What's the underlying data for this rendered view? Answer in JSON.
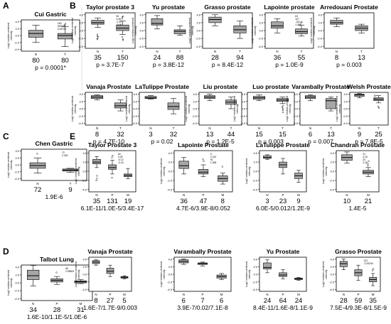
{
  "figure": {
    "panel_letters": [
      "A",
      "B",
      "C",
      "D",
      "E"
    ],
    "ylabel_main": "Log2 median-centered",
    "ylabel_sub": "intensity"
  },
  "panels": [
    {
      "letter": "A",
      "title": "Cui Gastric",
      "yticks": [
        "4.0",
        "2.0",
        "0.0",
        "-2.0",
        "-4.0"
      ],
      "ylim": [
        -4.5,
        4.5
      ],
      "groups": [
        {
          "label": "N",
          "count": "80",
          "box": {
            "min": -2.0,
            "q1": -0.5,
            "median": 0.6,
            "q3": 1.5,
            "max": 3.0
          }
        },
        {
          "label": "T",
          "count": "80",
          "box": {
            "min": -3.2,
            "q1": -1.0,
            "median": 0.0,
            "q3": 0.6,
            "max": 2.6
          },
          "outliers": [
            3.4,
            3.0,
            2.8
          ]
        }
      ],
      "annotations": [
        "160",
        "00072",
        "0,04701"
      ],
      "pvalue": "p = 0.0001*"
    },
    {
      "letter": "B",
      "title": "Taylor prostate 3",
      "yticks": [
        "4.0",
        "2.0",
        "0.0",
        "-2.0",
        "-4.0"
      ],
      "ylim": [
        -4.5,
        4.5
      ],
      "groups": [
        {
          "label": "N",
          "count": "35",
          "box": {
            "min": 0.8,
            "q1": 1.6,
            "median": 2.0,
            "q3": 2.6,
            "max": 3.2
          },
          "outliers": [
            -1.0,
            -1.4,
            -1.6,
            -2.0,
            -2.2
          ]
        },
        {
          "label": "T",
          "count": "150",
          "box": {
            "min": -1.0,
            "q1": 0.0,
            "median": 0.6,
            "q3": 1.4,
            "max": 2.4
          },
          "outliers": [
            3.0,
            3.4,
            3.6,
            -1.6,
            -2.2,
            -2.4
          ]
        }
      ],
      "annotations": [
        "30",
        "3.26",
        "-0.13",
        "-0.16"
      ],
      "pvalue": "p = 3.7E-7"
    },
    {
      "letter": "",
      "title": "Yu prostate",
      "yticks": [
        "4.0",
        "2.0",
        "0.0",
        "-2.0",
        "-4.0"
      ],
      "ylim": [
        -4.5,
        4.5
      ],
      "groups": [
        {
          "label": "N",
          "count": "24",
          "box": {
            "min": 0.4,
            "q1": 1.4,
            "median": 1.8,
            "q3": 3.0,
            "max": 3.8
          }
        },
        {
          "label": "T",
          "count": "88",
          "box": {
            "min": -1.2,
            "q1": -0.8,
            "median": -0.2,
            "q3": 0.2,
            "max": 1.2
          }
        }
      ],
      "pvalue": "p = 3.8E-12"
    },
    {
      "letter": "",
      "title": "Grasso prostate",
      "yticks": [
        "4.0",
        "2.0",
        "0.0",
        "-2.0",
        "-4.0"
      ],
      "ylim": [
        -4.5,
        4.5
      ],
      "groups": [
        {
          "label": "N",
          "count": "28",
          "box": {
            "min": 1.2,
            "q1": 2.0,
            "median": 2.8,
            "q3": 3.4,
            "max": 4.0
          }
        },
        {
          "label": "T",
          "count": "94",
          "box": {
            "min": -2.0,
            "q1": -0.6,
            "median": 0.2,
            "q3": 1.2,
            "max": 2.4
          }
        }
      ],
      "pvalue": "p = 8.4E-12"
    },
    {
      "letter": "",
      "title": "Lapointe prostate",
      "yticks": [
        "4.0",
        "2.0",
        "0.0",
        "-2.0",
        "-4.0"
      ],
      "ylim": [
        -4.5,
        4.5
      ],
      "groups": [
        {
          "label": "N",
          "count": "36",
          "box": {
            "min": -0.6,
            "q1": 0.6,
            "median": 1.2,
            "q3": 2.2,
            "max": 3.0
          }
        },
        {
          "label": "T",
          "count": "55",
          "box": {
            "min": -1.4,
            "q1": -0.8,
            "median": -0.3,
            "q3": 0.4,
            "max": 1.4
          },
          "outliers": [
            2.0,
            2.2
          ]
        }
      ],
      "annotations": [
        "63",
        "127",
        ".122",
        "1.336"
      ],
      "pvalue": "p = 1.0E-9"
    },
    {
      "letter": "",
      "title": "Arredouani Prostate",
      "yticks": [
        "4.0",
        "2.0",
        "0.0",
        "-2.0",
        "-4.0"
      ],
      "ylim": [
        -4.5,
        4.5
      ],
      "groups": [
        {
          "label": "N",
          "count": "8",
          "box": {
            "min": 1.0,
            "q1": 1.6,
            "median": 2.0,
            "q3": 2.6,
            "max": 3.2
          }
        },
        {
          "label": "T",
          "count": "13",
          "box": {
            "min": -0.6,
            "q1": 0.0,
            "median": 0.6,
            "q3": 1.2,
            "max": 1.6
          }
        }
      ],
      "pvalue": "p = 0.003"
    },
    {
      "letter": "",
      "title": "Vanaja Prostate",
      "yticks": [
        "4.0",
        "2.0",
        "0.0",
        "-2.0",
        "-4.0"
      ],
      "ylim": [
        -4.5,
        4.5
      ],
      "groups": [
        {
          "label": "N",
          "count": "8",
          "box": {
            "min": 2.4,
            "q1": 2.8,
            "median": 3.2,
            "q3": 3.6,
            "max": 3.8
          }
        },
        {
          "label": "T",
          "count": "32",
          "box": {
            "min": -0.6,
            "q1": 0.2,
            "median": 0.8,
            "q3": 1.6,
            "max": 2.4
          }
        }
      ],
      "pvalue": "p = 4.7E-10"
    },
    {
      "letter": "",
      "title": "LaTulippe Prostate",
      "yticks": [
        "4.0",
        "2.0",
        "0.0",
        "-2.0",
        "-4.0"
      ],
      "ylim": [
        -4.5,
        4.5
      ],
      "groups": [
        {
          "label": "N",
          "count": "3",
          "box": {
            "min": 2.6,
            "q1": 2.8,
            "median": 3.0,
            "q3": 3.4,
            "max": 3.6
          }
        },
        {
          "label": "T",
          "count": "32",
          "box": {
            "min": -1.4,
            "q1": -0.2,
            "median": 0.6,
            "q3": 1.6,
            "max": 2.8
          }
        }
      ],
      "pvalue": "p = 0.02"
    },
    {
      "letter": "",
      "title": "Liu prostate",
      "yticks": [
        "4.0",
        "2.0",
        "0.0",
        "-2.0",
        "-4.0"
      ],
      "ylim": [
        -4.5,
        4.5
      ],
      "groups": [
        {
          "label": "N",
          "count": "13",
          "box": {
            "min": 2.2,
            "q1": 2.8,
            "median": 3.2,
            "q3": 3.6,
            "max": 4.0
          }
        },
        {
          "label": "T",
          "count": "44",
          "box": {
            "min": 0.0,
            "q1": 1.2,
            "median": 1.8,
            "q3": 2.4,
            "max": 3.2
          }
        }
      ],
      "pvalue": "p = 1.2E-5"
    },
    {
      "letter": "",
      "title": "Luo prostate",
      "yticks": [
        "4.0",
        "2.0",
        "0.0",
        "-2.0",
        "-4.0"
      ],
      "ylim": [
        -4.5,
        4.5
      ],
      "groups": [
        {
          "label": "N",
          "count": "15",
          "box": {
            "min": 2.2,
            "q1": 2.6,
            "median": 3.0,
            "q3": 3.4,
            "max": 3.8
          }
        },
        {
          "label": "T",
          "count": "15",
          "box": {
            "min": 1.4,
            "q1": 2.0,
            "median": 2.4,
            "q3": 2.8,
            "max": 3.2
          },
          "outliers": [
            0.8,
            0.4,
            0.0,
            -0.4,
            -1.0
          ]
        }
      ],
      "pvalue": "p = 0.003"
    },
    {
      "letter": "",
      "title": "Varambally Prostate",
      "yticks": [
        "4.0",
        "2.0",
        "0.0",
        "-2.0",
        "-4.0"
      ],
      "ylim": [
        -4.5,
        4.5
      ],
      "groups": [
        {
          "label": "N",
          "count": "6",
          "box": {
            "min": 2.2,
            "q1": 2.8,
            "median": 3.2,
            "q3": 3.6,
            "max": 3.8
          }
        },
        {
          "label": "T",
          "count": "13",
          "box": {
            "min": -0.6,
            "q1": 0.0,
            "median": 2.2,
            "q3": 2.8,
            "max": 3.2
          }
        }
      ],
      "pvalue": "p = 0.007"
    },
    {
      "letter": "",
      "title": "Welsh Prostate",
      "yticks": [
        "4.0",
        "2.0",
        "0.0",
        "-2.0",
        "-4.0"
      ],
      "ylim": [
        -4.5,
        4.5
      ],
      "groups": [
        {
          "label": "N",
          "count": "9",
          "box": {
            "min": 3.0,
            "q1": 3.4,
            "median": 3.8,
            "q3": 4.0,
            "max": 4.2
          }
        },
        {
          "label": "T",
          "count": "25",
          "box": {
            "min": 1.6,
            "q1": 2.2,
            "median": 2.6,
            "q3": 3.0,
            "max": 3.6
          },
          "outliers": [
            0.6,
            0.2
          ]
        }
      ],
      "annotations": [
        "25",
        "10"
      ],
      "pvalue": "p = 7.8E-5"
    },
    {
      "letter": "C",
      "title": "Chen Gastric",
      "yticks": [
        "4.0",
        "2.0",
        "0.0",
        "-2.0",
        "-4.0"
      ],
      "ylim": [
        -4.5,
        4.5
      ],
      "groups": [
        {
          "label": "N",
          "count": "72",
          "box": {
            "min": -2.4,
            "q1": -1.0,
            "median": -0.2,
            "q3": 0.6,
            "max": 2.0
          },
          "outliers": [
            3.2
          ]
        },
        {
          "label": "T",
          "count": "9",
          "box": {
            "min": -2.2,
            "q1": -1.8,
            "median": -1.5,
            "q3": -1.2,
            "max": -1.0
          }
        }
      ],
      "annotations": [
        "72",
        "2.352"
      ],
      "pvalue": "1.9E-6"
    },
    {
      "letter": "D",
      "title": "Talbot Lung",
      "yticks": [
        "4.0",
        "2.0",
        "0.0",
        "-2.0",
        "-4.0"
      ],
      "ylim": [
        -4.5,
        4.5
      ],
      "groups": [
        {
          "label": "N",
          "count": "34",
          "box": {
            "min": -0.8,
            "q1": 0.8,
            "median": 1.8,
            "q3": 3.2,
            "max": 4.4
          }
        },
        {
          "label": "P",
          "count": "28",
          "box": {
            "min": -0.4,
            "q1": 0.2,
            "median": 0.6,
            "q3": 1.0,
            "max": 1.6
          },
          "outliers": [
            2.6
          ]
        },
        {
          "label": "M",
          "count": "31",
          "box": {
            "min": -0.2,
            "q1": 0.0,
            "median": 0.3,
            "q3": 0.5,
            "max": 0.8
          }
        }
      ],
      "annotations": [
        "46",
        "2.95604"
      ],
      "pvalue": "1.6E-10/1.1E-5/1.0E-6"
    },
    {
      "letter": "E",
      "title": "Taylor Prostate 3",
      "yticks": [
        "4.0",
        "2.0",
        "0.0",
        "-2.0",
        "-4.0"
      ],
      "ylim": [
        -4.5,
        4.5
      ],
      "groups": [
        {
          "label": "N",
          "count": "35",
          "box": {
            "min": 0.8,
            "q1": 1.6,
            "median": 2.0,
            "q3": 2.6,
            "max": 3.2
          },
          "outliers": [
            -1.0,
            -1.6,
            -2.0
          ]
        },
        {
          "label": "P",
          "count": "131",
          "box": {
            "min": -0.6,
            "q1": 0.4,
            "median": 0.8,
            "q3": 1.4,
            "max": 2.4
          },
          "outliers": [
            3.0,
            3.4,
            -1.4
          ]
        },
        {
          "label": "M",
          "count": "19",
          "box": {
            "min": -1.6,
            "q1": -1.2,
            "median": -0.9,
            "q3": -0.6,
            "max": 0.6
          }
        }
      ],
      "annotations": [
        "50",
        "3.25",
        "-0.12",
        "-0.16"
      ],
      "pvalue": "6.1E-11/1.0E-5/3.4E-17"
    },
    {
      "letter": "",
      "title": "Lapointe Prostate",
      "yticks": [
        "4.0",
        "2.0",
        "0.0",
        "-2.0",
        "-4.0"
      ],
      "ylim": [
        -4.5,
        4.5
      ],
      "groups": [
        {
          "label": "N",
          "count": "36",
          "box": {
            "min": -0.6,
            "q1": 0.6,
            "median": 1.2,
            "q3": 2.2,
            "max": 3.0
          }
        },
        {
          "label": "P",
          "count": "47",
          "box": {
            "min": -1.2,
            "q1": -0.6,
            "median": -0.2,
            "q3": 0.4,
            "max": 1.4
          },
          "outliers": [
            2.2,
            2.6
          ]
        },
        {
          "label": "M",
          "count": "8",
          "box": {
            "min": -2.8,
            "q1": -2.2,
            "median": -1.6,
            "q3": -1.0,
            "max": -0.4
          },
          "outliers": [
            1.0
          ]
        }
      ],
      "annotations": [
        "5",
        "2.122",
        "91",
        "1.268"
      ],
      "pvalue": "4.7E-6/3.9E-8/0.052"
    },
    {
      "letter": "",
      "title": "LaTulippe Prostate",
      "yticks": [
        "4.0",
        "2.0",
        "0.0",
        "-2.0",
        "-4.0"
      ],
      "ylim": [
        -4.5,
        4.5
      ],
      "groups": [
        {
          "label": "N",
          "count": "3",
          "box": {
            "min": 2.6,
            "q1": 2.8,
            "median": 3.0,
            "q3": 3.4,
            "max": 3.6
          }
        },
        {
          "label": "P",
          "count": "23",
          "box": {
            "min": -0.6,
            "q1": 0.8,
            "median": 1.4,
            "q3": 2.0,
            "max": 2.8
          }
        },
        {
          "label": "M",
          "count": "9",
          "box": {
            "min": -2.4,
            "q1": -1.6,
            "median": -1.0,
            "q3": -0.4,
            "max": 0.2
          }
        }
      ],
      "pvalue": "6.0E-5/0.012/1.2E-9"
    },
    {
      "letter": "",
      "title": "Chandran Prostate",
      "yticks": [
        "4.0",
        "2.0",
        "0.0",
        "-2.0",
        "-4.0"
      ],
      "ylim": [
        -4.5,
        4.5
      ],
      "groups": [
        {
          "label": "N",
          "count": "10",
          "box": {
            "min": 1.8,
            "q1": 2.4,
            "median": 3.0,
            "q3": 3.6,
            "max": 4.2
          }
        },
        {
          "label": "M",
          "count": "21",
          "box": {
            "min": -1.2,
            "q1": -0.6,
            "median": -0.2,
            "q3": 0.2,
            "max": 0.8
          },
          "outliers": [
            2.2,
            1.6,
            1.2
          ]
        }
      ],
      "annotations": [
        "21",
        "4.15",
        "20",
        "2.26"
      ],
      "pvalue": "1.4E-5"
    },
    {
      "letter": "",
      "title": "Vanaja Prostate",
      "yticks": [
        "4.0",
        "2.0",
        "0.0",
        "-2.0",
        "-4.0"
      ],
      "ylim": [
        -4.5,
        4.5
      ],
      "groups": [
        {
          "label": "N",
          "count": "8",
          "box": {
            "min": 2.4,
            "q1": 2.8,
            "median": 3.2,
            "q3": 3.6,
            "max": 3.8
          }
        },
        {
          "label": "P",
          "count": "27",
          "box": {
            "min": -0.6,
            "q1": 0.2,
            "median": 0.8,
            "q3": 1.6,
            "max": 2.4
          }
        },
        {
          "label": "M",
          "count": "5",
          "box": {
            "min": -1.2,
            "q1": -1.0,
            "median": -0.8,
            "q3": -0.6,
            "max": -0.4
          }
        }
      ],
      "pvalue": "1.6E-7/1.7E-9/0.003"
    },
    {
      "letter": "",
      "title": "Varambally Prostate",
      "yticks": [
        "4.0",
        "2.0",
        "0.0",
        "-2.0",
        "-4.0"
      ],
      "ylim": [
        -4.5,
        4.5
      ],
      "groups": [
        {
          "label": "N",
          "count": "6",
          "box": {
            "min": 2.6,
            "q1": 3.0,
            "median": 3.4,
            "q3": 3.8,
            "max": 4.0
          }
        },
        {
          "label": "P",
          "count": "7",
          "box": {
            "min": 2.2,
            "q1": 2.6,
            "median": 2.8,
            "q3": 3.0,
            "max": 3.2
          }
        },
        {
          "label": "M",
          "count": "6",
          "box": {
            "min": -1.4,
            "q1": -1.0,
            "median": -0.6,
            "q3": -0.2,
            "max": 0.2
          }
        }
      ],
      "pvalue": "3.9E-7/0.02/7.1E-8"
    },
    {
      "letter": "",
      "title": "Yu Prostate",
      "yticks": [
        "4.0",
        "2.0",
        "0.0",
        "-2.0",
        "-4.0"
      ],
      "ylim": [
        -4.5,
        4.5
      ],
      "groups": [
        {
          "label": "N",
          "count": "24",
          "box": {
            "min": 0.4,
            "q1": 1.4,
            "median": 1.8,
            "q3": 3.0,
            "max": 3.8
          }
        },
        {
          "label": "P",
          "count": "64",
          "box": {
            "min": -1.2,
            "q1": -0.6,
            "median": -0.2,
            "q3": 0.4,
            "max": 1.2
          }
        },
        {
          "label": "M",
          "count": "24",
          "box": {
            "min": -1.6,
            "q1": -1.4,
            "median": -1.2,
            "q3": -1.0,
            "max": -0.8
          }
        }
      ],
      "pvalue": "8.4E-11/1.6E-8/1.1E-9"
    },
    {
      "letter": "",
      "title": "Grasso Prostate",
      "yticks": [
        "4.0",
        "2.0",
        "0.0",
        "-2.0",
        "-4.0"
      ],
      "ylim": [
        -4.5,
        4.5
      ],
      "groups": [
        {
          "label": "N",
          "count": "28",
          "box": {
            "min": 1.2,
            "q1": 2.0,
            "median": 2.8,
            "q3": 3.4,
            "max": 4.0
          }
        },
        {
          "label": "P",
          "count": "59",
          "box": {
            "min": -1.6,
            "q1": -0.4,
            "median": 0.4,
            "q3": 1.2,
            "max": 2.4
          }
        },
        {
          "label": "M",
          "count": "35",
          "box": {
            "min": -3.0,
            "q1": -2.0,
            "median": -1.4,
            "q3": -0.8,
            "max": 0.2
          },
          "outliers": [
            1.4,
            1.0
          ]
        }
      ],
      "annotations": [
        "122",
        "-0.29234"
      ],
      "pvalue": "7.5E-4/9.3E-8/1.5E-9"
    }
  ]
}
